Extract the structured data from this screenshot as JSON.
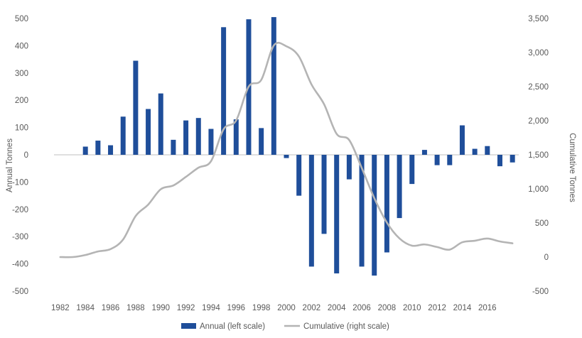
{
  "chart_data": {
    "type": "bar+line",
    "categories": [
      "1982",
      "1983",
      "1984",
      "1985",
      "1986",
      "1987",
      "1988",
      "1989",
      "1990",
      "1991",
      "1992",
      "1993",
      "1994",
      "1995",
      "1996",
      "1997",
      "1998",
      "1999",
      "2000",
      "2001",
      "2002",
      "2003",
      "2004",
      "2005",
      "2006",
      "2007",
      "2008",
      "2009",
      "2010",
      "2011",
      "2012",
      "2013",
      "2014",
      "2015",
      "2016",
      "2017",
      "2018"
    ],
    "x_tick_labels": [
      "1982",
      "1984",
      "1986",
      "1988",
      "1990",
      "1992",
      "1994",
      "1996",
      "1998",
      "2000",
      "2002",
      "2004",
      "2006",
      "2008",
      "2010",
      "2012",
      "2014",
      "2016"
    ],
    "series": [
      {
        "name": "Annual (left scale)",
        "axis": "left",
        "kind": "bar",
        "color": "#1f4e9a",
        "values": [
          0,
          0,
          30,
          52,
          35,
          140,
          345,
          168,
          225,
          55,
          126,
          135,
          95,
          468,
          130,
          497,
          98,
          505,
          -12,
          -150,
          -410,
          -290,
          -435,
          -90,
          -410,
          -443,
          -358,
          -232,
          -107,
          18,
          -38,
          -38,
          108,
          22,
          32,
          -42,
          -28
        ]
      },
      {
        "name": "Cumulative (right scale)",
        "axis": "right",
        "kind": "line",
        "color": "#b4b4b4",
        "values": [
          0,
          0,
          30,
          82,
          117,
          257,
          602,
          770,
          995,
          1050,
          1176,
          1311,
          1406,
          1874,
          2004,
          2501,
          2599,
          3104,
          3092,
          2942,
          2532,
          2242,
          1807,
          1717,
          1307,
          864,
          506,
          274,
          167,
          185,
          147,
          109,
          217,
          239,
          271,
          229,
          201
        ]
      }
    ],
    "ylabel_left": "Annual Tonnes",
    "ylabel_right": "Cumulative Tonnes",
    "ylim_left": [
      -500,
      500
    ],
    "ylim_right": [
      -500,
      3500
    ],
    "yticks_left": [
      "500",
      "400",
      "300",
      "200",
      "100",
      "0",
      "-100",
      "-200",
      "-300",
      "-400",
      "-500"
    ],
    "yticks_right": [
      "3,500",
      "3,000",
      "2,500",
      "2,000",
      "1,500",
      "1,000",
      "500",
      "0",
      "-500"
    ],
    "legend": {
      "position": "bottom-center",
      "annual": "Annual (left scale)",
      "cumulative": "Cumulative (right scale)"
    },
    "grid": false
  }
}
